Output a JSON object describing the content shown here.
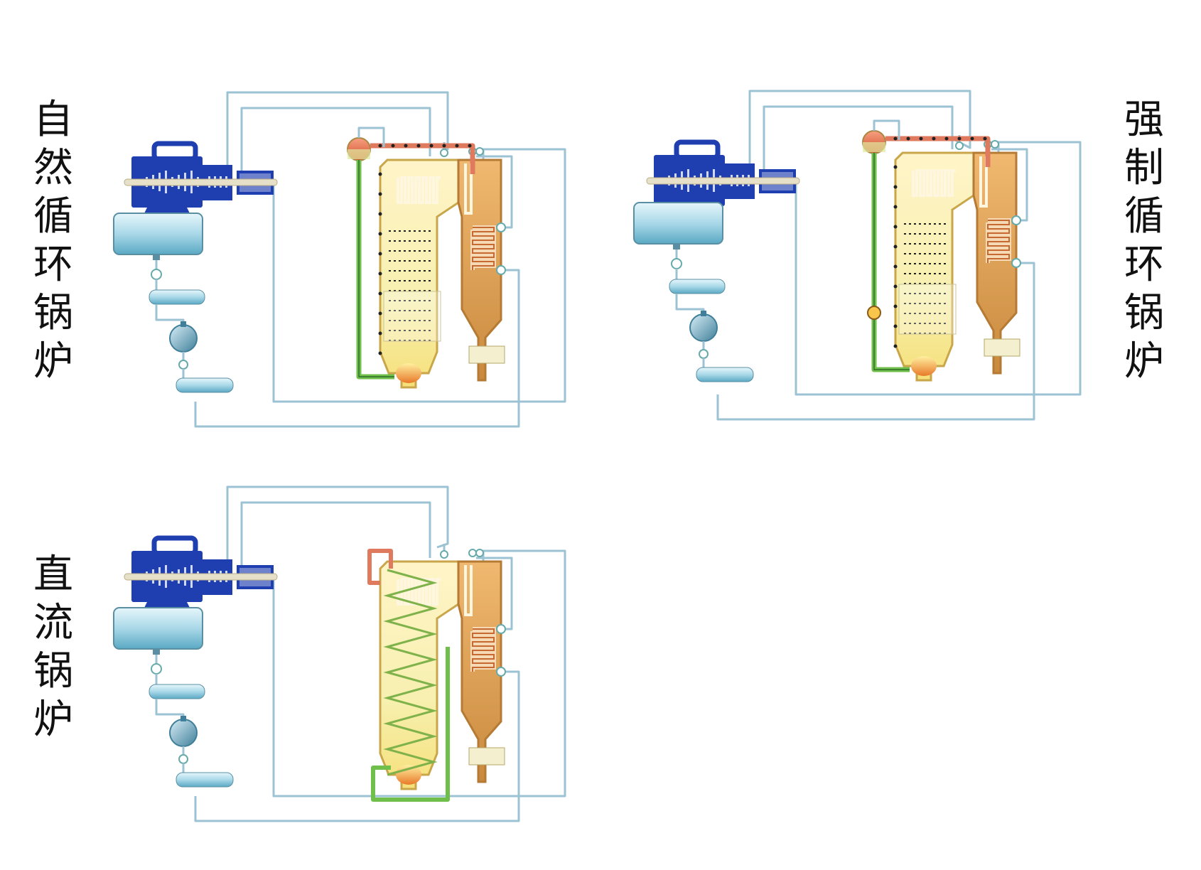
{
  "labels": {
    "natural_circulation": "自然循环锅炉",
    "forced_circulation": "强制循环锅炉",
    "once_through": "直流锅炉"
  },
  "colors": {
    "pipe": "#9cc3d4",
    "turbine_blue": "#1f3fb0",
    "furnace_yellow": "#f7f0b0",
    "flue_orange": "#e2a558",
    "riser_green": "#6fbf4a",
    "steam_red": "#e07a5f",
    "condenser": "#a9d8e8"
  }
}
